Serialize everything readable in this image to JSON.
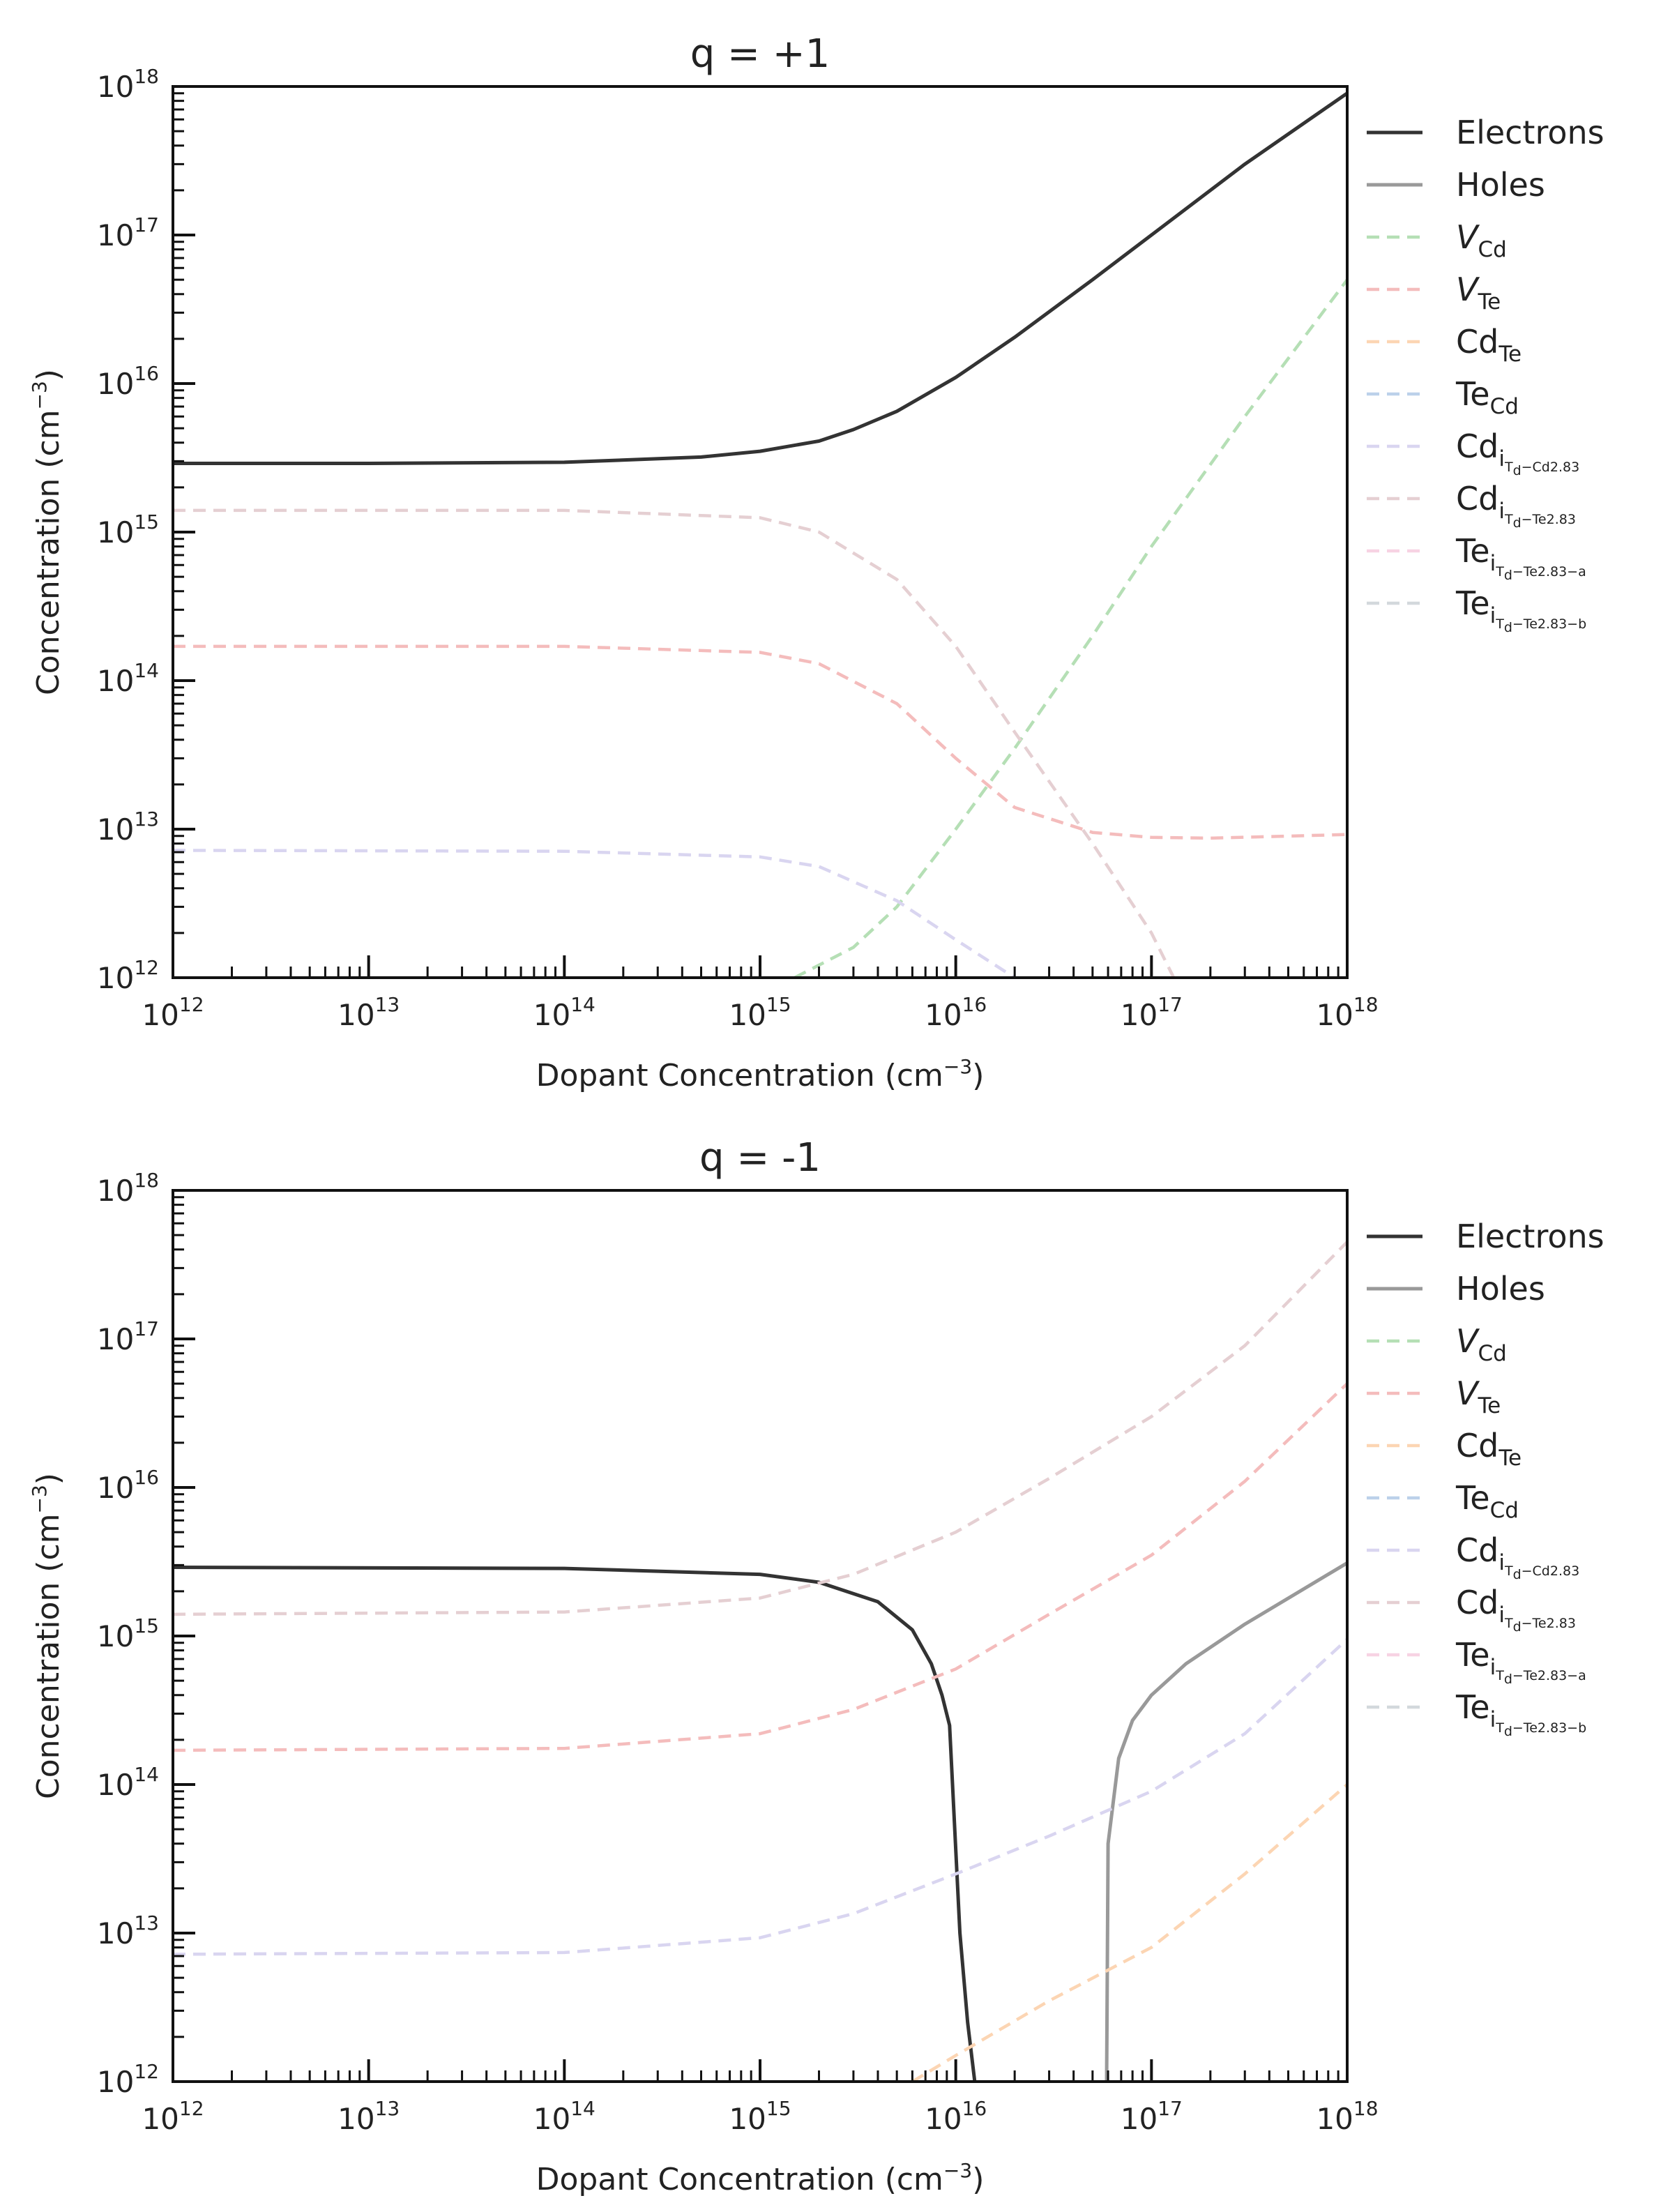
{
  "chart_data": [
    {
      "type": "line",
      "title": "q = +1",
      "xlabel": "Dopant Concentration (cm",
      "ylabel": "Concentration (cm",
      "label_unit_exp": "−3",
      "x_scale": "log",
      "y_scale": "log",
      "xlim": [
        1000000000000.0,
        1e+18
      ],
      "ylim": [
        1000000000000.0,
        1e+18
      ],
      "x_ticks": [
        {
          "base": "10",
          "exp": "12"
        },
        {
          "base": "10",
          "exp": "13"
        },
        {
          "base": "10",
          "exp": "14"
        },
        {
          "base": "10",
          "exp": "15"
        },
        {
          "base": "10",
          "exp": "16"
        },
        {
          "base": "10",
          "exp": "17"
        },
        {
          "base": "10",
          "exp": "18"
        }
      ],
      "y_ticks": [
        {
          "base": "10",
          "exp": "12"
        },
        {
          "base": "10",
          "exp": "13"
        },
        {
          "base": "10",
          "exp": "14"
        },
        {
          "base": "10",
          "exp": "15"
        },
        {
          "base": "10",
          "exp": "16"
        },
        {
          "base": "10",
          "exp": "17"
        },
        {
          "base": "10",
          "exp": "18"
        }
      ],
      "grid": false,
      "legend_position": "outside-right",
      "series": [
        {
          "name": "Electrons",
          "color": "#333333",
          "dash": "solid",
          "points": [
            [
              1000000000000.0,
              2900000000000000.0
            ],
            [
              10000000000000.0,
              2900000000000000.0
            ],
            [
              100000000000000.0,
              2950000000000000.0
            ],
            [
              500000000000000.0,
              3200000000000000.0
            ],
            [
              1000000000000000.0,
              3500000000000000.0
            ],
            [
              2000000000000000.0,
              4100000000000000.0
            ],
            [
              3000000000000000.0,
              4900000000000000.0
            ],
            [
              5000000000000000.0,
              6500000000000000.0
            ],
            [
              1e+16,
              1.1e+16
            ],
            [
              2e+16,
              2.05e+16
            ],
            [
              5e+16,
              5e+16
            ],
            [
              1e+17,
              1e+17
            ],
            [
              3e+17,
              3e+17
            ],
            [
              1e+18,
              9e+17
            ]
          ]
        },
        {
          "name": "Holes",
          "color": "#999999",
          "dash": "solid",
          "points": []
        },
        {
          "name": "V_Cd",
          "color": "#b5dfb5",
          "dash": "dashed",
          "points": [
            [
              1500000000000000.0,
              1000000000000.0
            ],
            [
              3000000000000000.0,
              1600000000000.0
            ],
            [
              5000000000000000.0,
              3000000000000.0
            ],
            [
              1e+16,
              10000000000000.0
            ],
            [
              2e+16,
              35000000000000.0
            ],
            [
              5e+16,
              200000000000000.0
            ],
            [
              1e+17,
              800000000000000.0
            ],
            [
              3e+17,
              6000000000000000.0
            ],
            [
              1e+18,
              5e+16
            ]
          ]
        },
        {
          "name": "V_Te",
          "color": "#f4bcbc",
          "dash": "dashed",
          "points": [
            [
              1000000000000.0,
              170000000000000.0
            ],
            [
              100000000000000.0,
              170000000000000.0
            ],
            [
              1000000000000000.0,
              155000000000000.0
            ],
            [
              2000000000000000.0,
              130000000000000.0
            ],
            [
              5000000000000000.0,
              70000000000000.0
            ],
            [
              1e+16,
              30000000000000.0
            ],
            [
              2e+16,
              14000000000000.0
            ],
            [
              5e+16,
              9500000000000.0
            ],
            [
              1e+17,
              8800000000000.0
            ],
            [
              2e+17,
              8700000000000.0
            ],
            [
              1e+18,
              9200000000000.0
            ]
          ]
        },
        {
          "name": "Cd_Te",
          "color": "#fcd5b3",
          "dash": "dashed",
          "points": []
        },
        {
          "name": "Te_Cd",
          "color": "#bcd1ea",
          "dash": "dashed",
          "points": []
        },
        {
          "name": "Cd_i Td-Cd2.83",
          "color": "#d9d5f0",
          "dash": "dashed",
          "points": [
            [
              1000000000000.0,
              7200000000000.0
            ],
            [
              100000000000000.0,
              7100000000000.0
            ],
            [
              1000000000000000.0,
              6500000000000.0
            ],
            [
              2000000000000000.0,
              5600000000000.0
            ],
            [
              5000000000000000.0,
              3300000000000.0
            ],
            [
              1e+16,
              1800000000000.0
            ],
            [
              2e+16,
              1000000000000.0
            ]
          ]
        },
        {
          "name": "Cd_i Td-Te2.83",
          "color": "#e5cfd2",
          "dash": "dashed",
          "points": [
            [
              1000000000000.0,
              1400000000000000.0
            ],
            [
              100000000000000.0,
              1400000000000000.0
            ],
            [
              1000000000000000.0,
              1250000000000000.0
            ],
            [
              2000000000000000.0,
              1000000000000000.0
            ],
            [
              5000000000000000.0,
              480000000000000.0
            ],
            [
              1e+16,
              170000000000000.0
            ],
            [
              2e+16,
              45000000000000.0
            ],
            [
              5e+16,
              8000000000000.0
            ],
            [
              1e+17,
              2000000000000.0
            ],
            [
              1.3e+17,
              1000000000000.0
            ]
          ]
        },
        {
          "name": "Te_i Td-Te2.83-a",
          "color": "#f7d3e3",
          "dash": "dashed",
          "points": []
        },
        {
          "name": "Te_i Td-Te2.83-b",
          "color": "#d3d8dc",
          "dash": "dashed",
          "points": []
        }
      ]
    },
    {
      "type": "line",
      "title": "q = -1",
      "xlabel": "Dopant Concentration (cm",
      "ylabel": "Concentration (cm",
      "label_unit_exp": "−3",
      "x_scale": "log",
      "y_scale": "log",
      "xlim": [
        1000000000000.0,
        1e+18
      ],
      "ylim": [
        1000000000000.0,
        1e+18
      ],
      "x_ticks": [
        {
          "base": "10",
          "exp": "12"
        },
        {
          "base": "10",
          "exp": "13"
        },
        {
          "base": "10",
          "exp": "14"
        },
        {
          "base": "10",
          "exp": "15"
        },
        {
          "base": "10",
          "exp": "16"
        },
        {
          "base": "10",
          "exp": "17"
        },
        {
          "base": "10",
          "exp": "18"
        }
      ],
      "y_ticks": [
        {
          "base": "10",
          "exp": "12"
        },
        {
          "base": "10",
          "exp": "13"
        },
        {
          "base": "10",
          "exp": "14"
        },
        {
          "base": "10",
          "exp": "15"
        },
        {
          "base": "10",
          "exp": "16"
        },
        {
          "base": "10",
          "exp": "17"
        },
        {
          "base": "10",
          "exp": "18"
        }
      ],
      "grid": false,
      "legend_position": "outside-right",
      "series": [
        {
          "name": "Electrons",
          "color": "#333333",
          "dash": "solid",
          "points": [
            [
              1000000000000.0,
              2900000000000000.0
            ],
            [
              100000000000000.0,
              2850000000000000.0
            ],
            [
              1000000000000000.0,
              2600000000000000.0
            ],
            [
              2000000000000000.0,
              2300000000000000.0
            ],
            [
              4000000000000000.0,
              1700000000000000.0
            ],
            [
              6000000000000000.0,
              1100000000000000.0
            ],
            [
              7500000000000000.0,
              650000000000000.0
            ],
            [
              8500000000000000.0,
              400000000000000.0
            ],
            [
              9300000000000000.0,
              250000000000000.0
            ],
            [
              1.05e+16,
              10000000000000.0
            ],
            [
              1.15e+16,
              2500000000000.0
            ],
            [
              1.25e+16,
              1000000000000.0
            ]
          ]
        },
        {
          "name": "Holes",
          "color": "#999999",
          "dash": "solid",
          "points": [
            [
              5.9e+16,
              1000000000000.0
            ],
            [
              6e+16,
              40000000000000.0
            ],
            [
              6.8e+16,
              150000000000000.0
            ],
            [
              8e+16,
              270000000000000.0
            ],
            [
              1e+17,
              400000000000000.0
            ],
            [
              1.5e+17,
              650000000000000.0
            ],
            [
              3e+17,
              1200000000000000.0
            ],
            [
              1e+18,
              3100000000000000.0
            ]
          ]
        },
        {
          "name": "V_Cd",
          "color": "#b5dfb5",
          "dash": "dashed",
          "points": []
        },
        {
          "name": "V_Te",
          "color": "#f4bcbc",
          "dash": "dashed",
          "points": [
            [
              1000000000000.0,
              170000000000000.0
            ],
            [
              100000000000000.0,
              175000000000000.0
            ],
            [
              1000000000000000.0,
              220000000000000.0
            ],
            [
              3000000000000000.0,
              320000000000000.0
            ],
            [
              1e+16,
              600000000000000.0
            ],
            [
              3e+16,
              1400000000000000.0
            ],
            [
              1e+17,
              3500000000000000.0
            ],
            [
              3e+17,
              1.1e+16
            ],
            [
              1e+18,
              5e+16
            ]
          ]
        },
        {
          "name": "Cd_Te",
          "color": "#fcd5b3",
          "dash": "dashed",
          "points": [
            [
              6000000000000000.0,
              1000000000000.0
            ],
            [
              1e+16,
              1500000000000.0
            ],
            [
              3e+16,
              3500000000000.0
            ],
            [
              1e+17,
              8000000000000.0
            ],
            [
              3e+17,
              25000000000000.0
            ],
            [
              1e+18,
              100000000000000.0
            ]
          ]
        },
        {
          "name": "Te_Cd",
          "color": "#bcd1ea",
          "dash": "dashed",
          "points": []
        },
        {
          "name": "Cd_i Td-Cd2.83",
          "color": "#d9d5f0",
          "dash": "dashed",
          "points": [
            [
              1000000000000.0,
              7200000000000.0
            ],
            [
              100000000000000.0,
              7400000000000.0
            ],
            [
              1000000000000000.0,
              9300000000000.0
            ],
            [
              3000000000000000.0,
              13500000000000.0
            ],
            [
              1e+16,
              25000000000000.0
            ],
            [
              3e+16,
              45000000000000.0
            ],
            [
              1e+17,
              90000000000000.0
            ],
            [
              3e+17,
              220000000000000.0
            ],
            [
              1e+18,
              950000000000000.0
            ]
          ]
        },
        {
          "name": "Cd_i Td-Te2.83",
          "color": "#e5cfd2",
          "dash": "dashed",
          "points": [
            [
              1000000000000.0,
              1400000000000000.0
            ],
            [
              100000000000000.0,
              1450000000000000.0
            ],
            [
              1000000000000000.0,
              1800000000000000.0
            ],
            [
              3000000000000000.0,
              2600000000000000.0
            ],
            [
              1e+16,
              5000000000000000.0
            ],
            [
              3e+16,
              1.15e+16
            ],
            [
              1e+17,
              3e+16
            ],
            [
              3e+17,
              9e+16
            ],
            [
              1e+18,
              4.5e+17
            ]
          ]
        },
        {
          "name": "Te_i Td-Te2.83-a",
          "color": "#f7d3e3",
          "dash": "dashed",
          "points": []
        },
        {
          "name": "Te_i Td-Te2.83-b",
          "color": "#d3d8dc",
          "dash": "dashed",
          "points": []
        }
      ]
    }
  ],
  "legend_labels": [
    {
      "main": "Electrons",
      "italic": false
    },
    {
      "main": "Holes",
      "italic": false
    },
    {
      "main": "V",
      "italic": true,
      "sub": "Cd"
    },
    {
      "main": "V",
      "italic": true,
      "sub": "Te"
    },
    {
      "main": "Cd",
      "italic": false,
      "sub": "Te"
    },
    {
      "main": "Te",
      "italic": false,
      "sub": "Cd"
    },
    {
      "main": "Cd",
      "italic": false,
      "sub": "i",
      "subsub": "T",
      "subsubsub": "d",
      "tail": "−Cd2.83"
    },
    {
      "main": "Cd",
      "italic": false,
      "sub": "i",
      "subsub": "T",
      "subsubsub": "d",
      "tail": "−Te2.83"
    },
    {
      "main": "Te",
      "italic": false,
      "sub": "i",
      "subsub": "T",
      "subsubsub": "d",
      "tail": "−Te2.83−a"
    },
    {
      "main": "Te",
      "italic": false,
      "sub": "i",
      "subsub": "T",
      "subsubsub": "d",
      "tail": "−Te2.83−b"
    }
  ]
}
